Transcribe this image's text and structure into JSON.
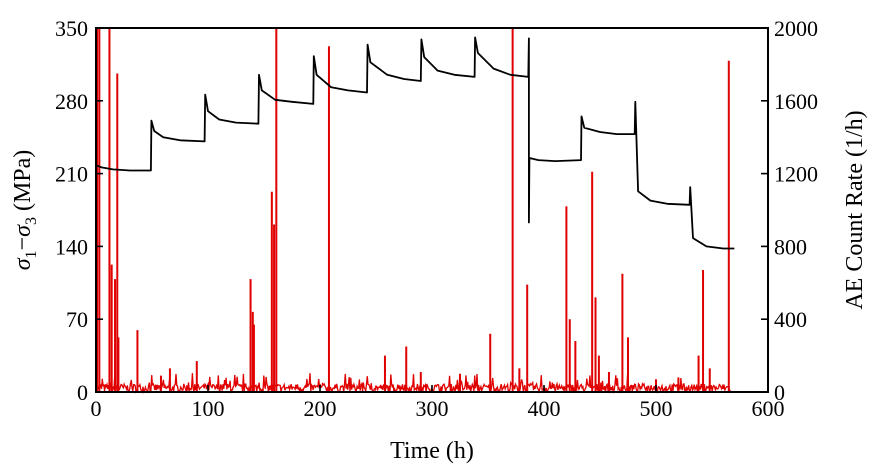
{
  "chart_data": {
    "type": "line",
    "xlabel": "Time (h)",
    "ylabel_left": "σ1−σ3 (MPa)",
    "ylabel_right": "AE Count Rate (1/h)",
    "xlim": [
      0,
      600
    ],
    "ylim_left": [
      0,
      350
    ],
    "ylim_right": [
      0,
      2000
    ],
    "x_ticks": [
      0,
      100,
      200,
      300,
      400,
      500,
      600
    ],
    "y_left_ticks": [
      0,
      70,
      140,
      210,
      280,
      350
    ],
    "y_right_ticks": [
      0,
      400,
      800,
      1200,
      1600,
      2000
    ],
    "grid": false,
    "series": [
      {
        "axis": "left",
        "color": "#000000",
        "description": "stress",
        "points": [
          [
            0,
            218
          ],
          [
            5,
            216
          ],
          [
            15,
            214
          ],
          [
            30,
            213
          ],
          [
            49,
            213
          ],
          [
            49.5,
            261
          ],
          [
            52,
            251
          ],
          [
            60,
            245
          ],
          [
            75,
            242
          ],
          [
            97,
            241
          ],
          [
            97.5,
            286
          ],
          [
            100,
            270
          ],
          [
            110,
            262
          ],
          [
            125,
            259
          ],
          [
            145,
            258
          ],
          [
            145.5,
            305
          ],
          [
            148,
            290
          ],
          [
            160,
            281
          ],
          [
            175,
            279
          ],
          [
            194,
            277
          ],
          [
            194.5,
            323
          ],
          [
            197,
            305
          ],
          [
            210,
            293
          ],
          [
            225,
            290
          ],
          [
            242,
            288
          ],
          [
            242.5,
            334
          ],
          [
            245,
            317
          ],
          [
            260,
            305
          ],
          [
            275,
            301
          ],
          [
            290,
            299
          ],
          [
            290.5,
            339
          ],
          [
            293,
            322
          ],
          [
            305,
            309
          ],
          [
            320,
            305
          ],
          [
            338,
            303
          ],
          [
            338.5,
            341
          ],
          [
            341,
            326
          ],
          [
            355,
            311
          ],
          [
            370,
            305
          ],
          [
            386,
            303
          ],
          [
            386.5,
            340
          ],
          [
            386.5,
            163
          ],
          [
            387,
            225
          ],
          [
            395,
            223
          ],
          [
            410,
            222
          ],
          [
            433,
            223
          ],
          [
            433.5,
            265
          ],
          [
            436,
            254
          ],
          [
            450,
            250
          ],
          [
            465,
            248
          ],
          [
            481,
            248
          ],
          [
            481.5,
            279
          ],
          [
            484,
            193
          ],
          [
            495,
            184
          ],
          [
            510,
            181
          ],
          [
            530,
            180
          ],
          [
            530.5,
            197
          ],
          [
            533,
            148
          ],
          [
            545,
            140
          ],
          [
            560,
            138
          ],
          [
            570,
            138
          ]
        ]
      },
      {
        "axis": "right",
        "color": "#e00000",
        "description": "AE count rate",
        "baseline_noise_max": 65,
        "spikes": [
          [
            1,
            2000
          ],
          [
            3,
            2000
          ],
          [
            12,
            2000
          ],
          [
            14,
            700
          ],
          [
            17,
            620
          ],
          [
            19,
            1750
          ],
          [
            20,
            300
          ],
          [
            37,
            340
          ],
          [
            58,
            90
          ],
          [
            66,
            130
          ],
          [
            90,
            170
          ],
          [
            138,
            620
          ],
          [
            140,
            440
          ],
          [
            141,
            370
          ],
          [
            157,
            1100
          ],
          [
            159,
            920
          ],
          [
            161,
            2000
          ],
          [
            208,
            1900
          ],
          [
            258,
            200
          ],
          [
            277,
            250
          ],
          [
            290,
            110
          ],
          [
            325,
            100
          ],
          [
            352,
            320
          ],
          [
            372,
            2000
          ],
          [
            378,
            130
          ],
          [
            385,
            590
          ],
          [
            420,
            1020
          ],
          [
            423,
            400
          ],
          [
            428,
            280
          ],
          [
            443,
            1210
          ],
          [
            446,
            520
          ],
          [
            449,
            200
          ],
          [
            458,
            110
          ],
          [
            470,
            650
          ],
          [
            475,
            300
          ],
          [
            500,
            70
          ],
          [
            520,
            80
          ],
          [
            538,
            200
          ],
          [
            542,
            670
          ],
          [
            548,
            130
          ],
          [
            565,
            1820
          ]
        ]
      }
    ]
  }
}
